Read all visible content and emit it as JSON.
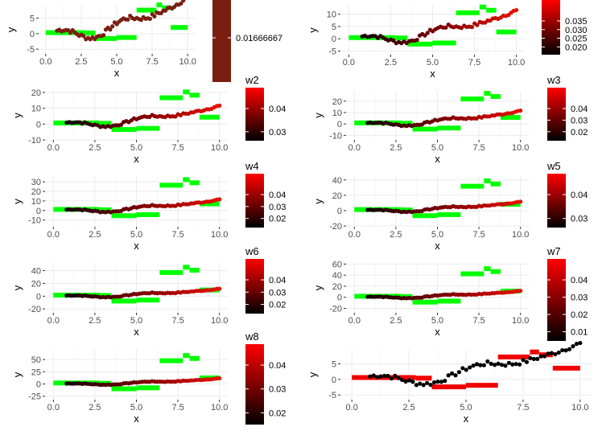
{
  "chart_data": [
    {
      "type": "scatter",
      "xlabel": "x",
      "ylabel": "y",
      "xticks": [
        "0.0",
        "2.5",
        "5.0",
        "7.5",
        "10.0"
      ],
      "yticks": [
        "-5",
        "0",
        "5"
      ],
      "xlim": [
        -0.5,
        10.5
      ],
      "ylim": [
        -6.5,
        9
      ],
      "legend": {
        "title": "",
        "labels": [
          "0.01666667"
        ]
      }
    },
    {
      "type": "scatter",
      "xlabel": "x",
      "ylabel": "y",
      "xticks": [
        "0.0",
        "2.5",
        "5.0",
        "7.5",
        "10.0"
      ],
      "yticks": [
        "-5",
        "0",
        "5",
        "10"
      ],
      "xlim": [
        -0.5,
        10.5
      ],
      "ylim": [
        -6.5,
        13.5
      ],
      "legend": {
        "title": "",
        "labels": [
          "0.035",
          "0.030",
          "0.025",
          "0.020"
        ]
      }
    },
    {
      "type": "scatter",
      "xlabel": "x",
      "ylabel": "y",
      "xticks": [
        "0.0",
        "2.5",
        "5.0",
        "7.5",
        "10.0"
      ],
      "yticks": [
        "-10",
        "0",
        "10",
        "20"
      ],
      "xlim": [
        -0.5,
        10.5
      ],
      "ylim": [
        -10,
        21
      ],
      "legend": {
        "title": "w2",
        "labels": [
          "0.04",
          "0.03"
        ]
      }
    },
    {
      "type": "scatter",
      "xlabel": "x",
      "ylabel": "y",
      "xticks": [
        "0.0",
        "2.5",
        "5.0",
        "7.5",
        "10.0"
      ],
      "yticks": [
        "-10",
        "0",
        "10",
        "20"
      ],
      "xlim": [
        -0.5,
        10.5
      ],
      "ylim": [
        -14,
        29
      ],
      "legend": {
        "title": "w3",
        "labels": [
          "0.04",
          "0.03",
          "0.02"
        ]
      }
    },
    {
      "type": "scatter",
      "xlabel": "x",
      "ylabel": "y",
      "xticks": [
        "0.0",
        "2.5",
        "5.0",
        "7.5",
        "10.0"
      ],
      "yticks": [
        "-10",
        "0",
        "10",
        "20",
        "30"
      ],
      "xlim": [
        -0.5,
        10.5
      ],
      "ylim": [
        -17,
        36
      ],
      "legend": {
        "title": "w4",
        "labels": [
          "0.04",
          "0.03",
          "0.02"
        ]
      }
    },
    {
      "type": "scatter",
      "xlabel": "x",
      "ylabel": "y",
      "xticks": [
        "0.0",
        "2.5",
        "5.0",
        "7.5",
        "10.0"
      ],
      "yticks": [
        "-20",
        "0",
        "20",
        "40"
      ],
      "xlim": [
        -0.5,
        10.5
      ],
      "ylim": [
        -21,
        45
      ],
      "legend": {
        "title": "w5",
        "labels": [
          "0.04",
          "0.03"
        ]
      }
    },
    {
      "type": "scatter",
      "xlabel": "x",
      "ylabel": "y",
      "xticks": [
        "0.0",
        "2.5",
        "5.0",
        "7.5",
        "10.0"
      ],
      "yticks": [
        "-20",
        "0",
        "20",
        "40"
      ],
      "xlim": [
        -0.5,
        10.5
      ],
      "ylim": [
        -26,
        52
      ],
      "legend": {
        "title": "w6",
        "labels": [
          "0.04",
          "0.03",
          "0.02"
        ]
      }
    },
    {
      "type": "scatter",
      "xlabel": "x",
      "ylabel": "y",
      "xticks": [
        "0.0",
        "2.5",
        "5.0",
        "7.5",
        "10.0"
      ],
      "yticks": [
        "-20",
        "0",
        "20",
        "40",
        "60"
      ],
      "xlim": [
        -0.5,
        10.5
      ],
      "ylim": [
        -28,
        62
      ],
      "legend": {
        "title": "w7",
        "labels": [
          "0.04",
          "0.03",
          "0.02",
          "0.01"
        ]
      }
    },
    {
      "type": "scatter",
      "xlabel": "x",
      "ylabel": "y",
      "xticks": [
        "0.0",
        "2.5",
        "5.0",
        "7.5",
        "10.0"
      ],
      "yticks": [
        "-25",
        "0",
        "25",
        "50"
      ],
      "xlim": [
        -0.5,
        10.5
      ],
      "ylim": [
        -32,
        70
      ],
      "legend": {
        "title": "w8",
        "labels": [
          "0.04",
          "0.03",
          "0.02"
        ]
      }
    },
    {
      "type": "scatter",
      "xlabel": "x",
      "ylabel": "y",
      "xticks": [
        "0.0",
        "2.5",
        "5.0",
        "7.5",
        "10.0"
      ],
      "yticks": [
        "-5",
        "0",
        "5"
      ],
      "xlim": [
        -0.5,
        10.5
      ],
      "ylim": [
        -6.5,
        9.5
      ],
      "legend": null
    }
  ]
}
